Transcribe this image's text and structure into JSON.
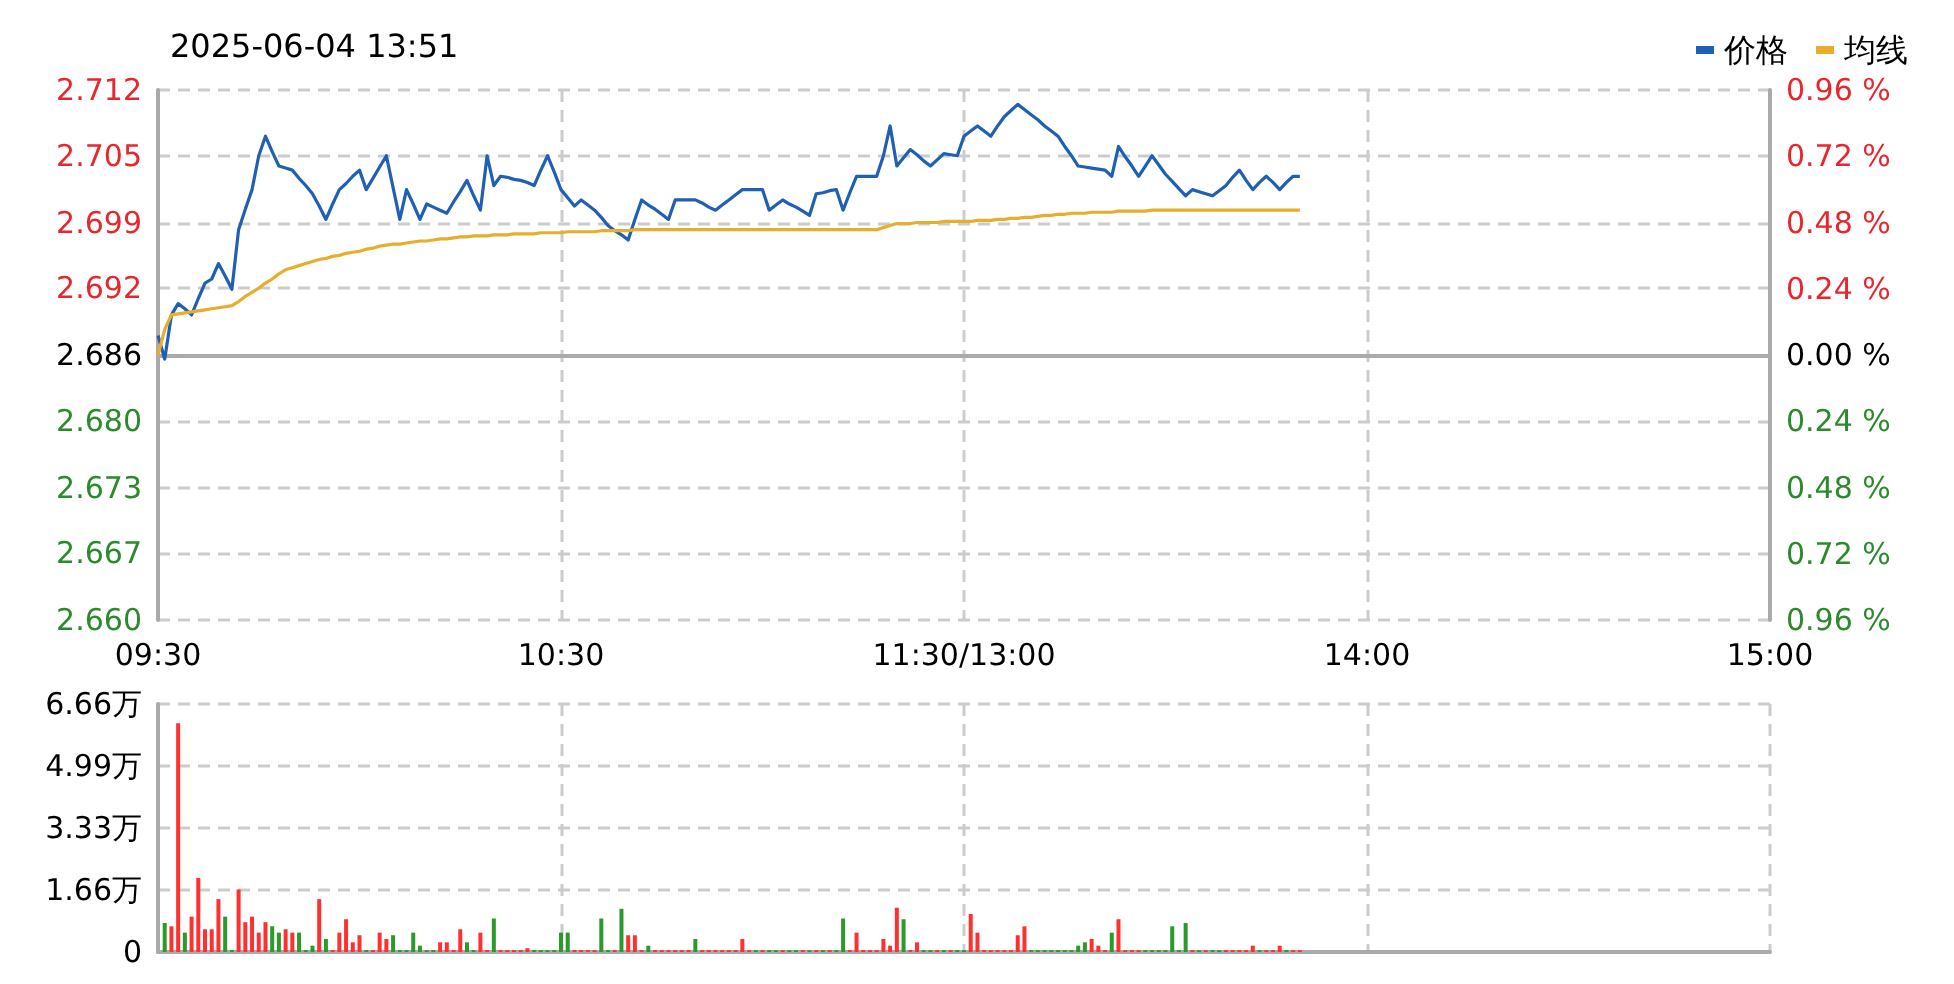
{
  "chart_data": [
    {
      "type": "line",
      "title": "2025-06-04 13:51",
      "legend": "top right",
      "grid": true,
      "categories": [
        "09:30",
        null,
        null,
        null,
        null,
        null,
        null,
        null,
        null,
        null,
        null,
        null,
        null,
        null,
        null,
        null,
        null,
        null,
        null,
        null,
        null,
        null,
        null,
        null,
        null,
        null,
        null,
        null,
        null,
        null,
        null,
        null,
        null,
        null,
        null,
        null,
        null,
        null,
        null,
        null,
        null,
        null,
        null,
        null,
        null,
        null,
        null,
        null,
        null,
        null,
        null,
        null,
        null,
        null,
        null,
        null,
        null,
        null,
        null,
        null,
        "10:30",
        null,
        null,
        null,
        null,
        null,
        null,
        null,
        null,
        null,
        null,
        null,
        null,
        null,
        null,
        null,
        null,
        null,
        null,
        null,
        null,
        null,
        null,
        null,
        null,
        null,
        null,
        null,
        null,
        null,
        null,
        null,
        null,
        null,
        null,
        null,
        null,
        null,
        null,
        null,
        null,
        null,
        null,
        null,
        null,
        null,
        null,
        null,
        null,
        null,
        null,
        null,
        null,
        null,
        null,
        null,
        null,
        null,
        null,
        null,
        "11:30/13:00",
        null,
        null,
        null,
        null,
        null,
        null,
        null,
        null,
        null,
        null,
        null,
        null,
        null,
        null,
        null,
        null,
        null,
        null,
        null,
        null,
        null,
        null,
        null,
        null,
        null,
        null,
        null,
        null,
        null,
        null,
        null,
        null,
        null,
        null,
        null,
        null,
        null,
        null,
        null,
        null,
        null,
        null,
        null,
        null,
        null,
        null,
        null,
        null,
        null,
        null,
        null,
        null,
        null,
        null,
        null,
        null,
        null,
        null,
        null,
        "14:00",
        null,
        null,
        null,
        null,
        null,
        null,
        null,
        null,
        null,
        null,
        null,
        null,
        null,
        null,
        null,
        null,
        null,
        null,
        null,
        null,
        null,
        null,
        null,
        null,
        null,
        null,
        null,
        null,
        null,
        null,
        null,
        null,
        null,
        null,
        null,
        null,
        null,
        null,
        null,
        null,
        null,
        null,
        null,
        null,
        null,
        null,
        null,
        null,
        null,
        null,
        null,
        null,
        null,
        null,
        null,
        null,
        null,
        null,
        null,
        "15:00"
      ],
      "ylim": [
        2.6602,
        2.7118
      ],
      "yticks": [
        {
          "value": 2.6602,
          "label": "2.660"
        },
        {
          "value": 2.6667,
          "label": "2.667"
        },
        {
          "value": 2.6731,
          "label": "2.673"
        },
        {
          "value": 2.6796,
          "label": "2.680"
        },
        {
          "value": 2.686,
          "label": "2.686"
        },
        {
          "value": 2.6925,
          "label": "2.692"
        },
        {
          "value": 2.6989,
          "label": "2.699"
        },
        {
          "value": 2.7054,
          "label": "2.705"
        },
        {
          "value": 2.7118,
          "label": "2.712"
        }
      ],
      "y2lim": [
        -0.96,
        0.96
      ],
      "y2ticks": [
        {
          "value": -0.96,
          "label": "0.96 %"
        },
        {
          "value": -0.72,
          "label": "0.72 %"
        },
        {
          "value": -0.48,
          "label": "0.48 %"
        },
        {
          "value": -0.24,
          "label": "0.24 %"
        },
        {
          "value": 0,
          "label": "0.00 %"
        },
        {
          "value": 0.24,
          "label": "0.24 %"
        },
        {
          "value": 0.48,
          "label": "0.48 %"
        },
        {
          "value": 0.72,
          "label": "0.72 %"
        },
        {
          "value": 0.96,
          "label": "0.96 %"
        }
      ],
      "series": [
        {
          "name": "价格",
          "color": "#1f5fb4",
          "values": [
            2.6879,
            2.6856,
            2.6899,
            2.691,
            2.6905,
            2.6899,
            2.6915,
            2.693,
            2.6934,
            2.6949,
            2.6937,
            2.6924,
            2.6982,
            2.7002,
            2.7021,
            2.7054,
            2.7073,
            2.7058,
            2.7044,
            2.7042,
            2.704,
            2.7032,
            2.7025,
            2.7017,
            2.7005,
            2.6992,
            2.7007,
            2.7021,
            2.7027,
            2.7034,
            2.704,
            2.7021,
            2.7032,
            2.7043,
            2.7054,
            2.7023,
            2.6992,
            2.7021,
            2.7007,
            2.6992,
            2.7007,
            2.7004,
            2.7001,
            2.6998,
            2.7009,
            2.7019,
            2.703,
            2.7015,
            2.7001,
            2.7054,
            2.7025,
            2.7034,
            2.7033,
            2.7031,
            2.703,
            2.7028,
            2.7025,
            2.704,
            2.7054,
            2.7038,
            2.7021,
            2.7013,
            2.7005,
            2.7011,
            2.7006,
            2.7001,
            2.6994,
            2.6986,
            2.6981,
            2.6977,
            2.6972,
            2.6992,
            2.7011,
            2.7006,
            2.7002,
            2.6997,
            2.6992,
            2.7011,
            2.7011,
            2.7011,
            2.7011,
            2.7008,
            2.7004,
            2.7001,
            2.7006,
            2.7011,
            2.7016,
            2.7021,
            2.7021,
            2.7021,
            2.7021,
            2.7001,
            2.7006,
            2.7011,
            2.7007,
            2.7004,
            2.7,
            2.6996,
            2.7017,
            2.7018,
            2.702,
            2.7021,
            2.7001,
            2.7018,
            2.7034,
            2.7034,
            2.7034,
            2.7034,
            2.7054,
            2.7083,
            2.7044,
            2.7052,
            2.706,
            2.7055,
            2.7049,
            2.7044,
            2.705,
            2.7056,
            2.7055,
            2.7054,
            2.7073,
            2.7078,
            2.7083,
            2.7078,
            2.7073,
            2.7083,
            2.7092,
            2.7098,
            2.7104,
            2.7099,
            2.7094,
            2.7089,
            2.7083,
            2.7078,
            2.7073,
            2.7063,
            2.7054,
            2.7044,
            2.7043,
            2.7042,
            2.7041,
            2.704,
            2.7034,
            2.7063,
            2.7053,
            2.7044,
            2.7034,
            2.7044,
            2.7054,
            2.7045,
            2.7036,
            2.7029,
            2.7022,
            2.7015,
            2.7021,
            2.7019,
            2.7017,
            2.7015,
            2.702,
            2.7025,
            2.7033,
            2.704,
            2.703,
            2.7021,
            2.7028,
            2.7034,
            2.7028,
            2.7021,
            2.7028,
            2.7034,
            2.7034,
            null,
            null,
            null,
            null,
            null,
            null,
            null,
            null,
            null,
            null,
            null,
            null,
            null,
            null,
            null,
            null,
            null,
            null,
            null,
            null,
            null,
            null,
            null,
            null,
            null,
            null,
            null,
            null,
            null,
            null,
            null,
            null,
            null,
            null,
            null,
            null,
            null,
            null,
            null,
            null,
            null,
            null,
            null,
            null,
            null,
            null,
            null,
            null,
            null,
            null,
            null,
            null,
            null,
            null,
            null,
            null,
            null,
            null,
            null,
            null,
            null,
            null,
            null,
            null,
            null,
            null,
            null,
            null,
            null,
            null
          ]
        },
        {
          "name": "均线",
          "color": "#e8ad2c",
          "values": [
            2.686,
            2.6885,
            2.6899,
            2.69,
            2.6901,
            2.6902,
            2.6903,
            2.6904,
            2.6905,
            2.6906,
            2.6907,
            2.6908,
            2.6912,
            2.6917,
            2.6921,
            2.6925,
            2.693,
            2.6934,
            2.6939,
            2.6943,
            2.6945,
            2.6947,
            2.6949,
            2.6951,
            2.6953,
            2.6954,
            2.6956,
            2.6957,
            2.6959,
            2.696,
            2.6961,
            2.6963,
            2.6964,
            2.6966,
            2.6967,
            2.6968,
            2.6968,
            2.6969,
            2.697,
            2.6971,
            2.6971,
            2.6972,
            2.6973,
            2.6973,
            2.6974,
            2.6975,
            2.6975,
            2.6976,
            2.6976,
            2.6976,
            2.6977,
            2.6977,
            2.6977,
            2.6978,
            2.6978,
            2.6978,
            2.6978,
            2.6979,
            2.6979,
            2.6979,
            2.6979,
            2.698,
            2.698,
            2.698,
            2.698,
            2.698,
            2.6981,
            2.6981,
            2.6981,
            2.6981,
            2.6981,
            2.6982,
            2.6982,
            2.6982,
            2.6982,
            2.6982,
            2.6982,
            2.6982,
            2.6982,
            2.6982,
            2.6982,
            2.6982,
            2.6982,
            2.6982,
            2.6982,
            2.6982,
            2.6982,
            2.6982,
            2.6982,
            2.6982,
            2.6982,
            2.6982,
            2.6982,
            2.6982,
            2.6982,
            2.6982,
            2.6982,
            2.6982,
            2.6982,
            2.6982,
            2.6982,
            2.6982,
            2.6982,
            2.6982,
            2.6982,
            2.6982,
            2.6982,
            2.6982,
            2.6984,
            2.6986,
            2.6988,
            2.6988,
            2.6988,
            2.6989,
            2.6989,
            2.6989,
            2.6989,
            2.699,
            2.699,
            2.699,
            2.699,
            2.699,
            2.6991,
            2.6991,
            2.6991,
            2.6992,
            2.6992,
            2.6993,
            2.6993,
            2.6994,
            2.6994,
            2.6995,
            2.6996,
            2.6996,
            2.6997,
            2.6997,
            2.6998,
            2.6998,
            2.6998,
            2.6999,
            2.6999,
            2.6999,
            2.6999,
            2.7,
            2.7,
            2.7,
            2.7,
            2.7,
            2.7001,
            2.7001,
            2.7001,
            2.7001,
            2.7001,
            2.7001,
            2.7001,
            2.7001,
            2.7001,
            2.7001,
            2.7001,
            2.7001,
            2.7001,
            2.7001,
            2.7001,
            2.7001,
            2.7001,
            2.7001,
            2.7001,
            2.7001,
            2.7001,
            2.7001,
            2.7001,
            null,
            null,
            null,
            null,
            null,
            null,
            null,
            null,
            null,
            null,
            null,
            null,
            null,
            null,
            null,
            null,
            null,
            null,
            null,
            null,
            null,
            null,
            null,
            null,
            null,
            null,
            null,
            null,
            null,
            null,
            null,
            null,
            null,
            null,
            null,
            null,
            null,
            null,
            null,
            null,
            null,
            null,
            null,
            null,
            null,
            null,
            null,
            null,
            null,
            null,
            null,
            null,
            null,
            null,
            null,
            null,
            null,
            null,
            null,
            null,
            null,
            null,
            null,
            null,
            null,
            null,
            null,
            null,
            null,
            null
          ]
        }
      ]
    },
    {
      "type": "bar",
      "grid": true,
      "tick_labels": "y",
      "categories": [
        null,
        null,
        null,
        null,
        null,
        null,
        null,
        null,
        null,
        null,
        null,
        null,
        null,
        null,
        null,
        null,
        null,
        null,
        null,
        null,
        null,
        null,
        null,
        null,
        null,
        null,
        null,
        null,
        null,
        null,
        null,
        null,
        null,
        null,
        null,
        null,
        null,
        null,
        null,
        null,
        null,
        null,
        null,
        null,
        null,
        null,
        null,
        null,
        null,
        null,
        null,
        null,
        null,
        null,
        null,
        null,
        null,
        null,
        null,
        null,
        null,
        null,
        null,
        null,
        null,
        null,
        null,
        null,
        null,
        null,
        null,
        null,
        null,
        null,
        null,
        null,
        null,
        null,
        null,
        null,
        null,
        null,
        null,
        null,
        null,
        null,
        null,
        null,
        null,
        null,
        null,
        null,
        null,
        null,
        null,
        null,
        null,
        null,
        null,
        null,
        null,
        null,
        null,
        null,
        null,
        null,
        null,
        null,
        null,
        null,
        null,
        null,
        null,
        null,
        null,
        null,
        null,
        null,
        null,
        null,
        null,
        null,
        null,
        null,
        null,
        null,
        null,
        null,
        null,
        null,
        null,
        null,
        null,
        null,
        null,
        null,
        null,
        null,
        null,
        null,
        null,
        null,
        null,
        null,
        null,
        null,
        null,
        null,
        null,
        null,
        null,
        null,
        null,
        null,
        null,
        null,
        null,
        null,
        null,
        null,
        null,
        null,
        null,
        null,
        null,
        null,
        null,
        null,
        null,
        null,
        null,
        null,
        null,
        null,
        null,
        null,
        null,
        null,
        null,
        null,
        null,
        null,
        null,
        null,
        null,
        null,
        null,
        null,
        null,
        null,
        null,
        null,
        null,
        null,
        null,
        null,
        null,
        null,
        null,
        null,
        null,
        null,
        null,
        null,
        null,
        null,
        null,
        null,
        null,
        null,
        null,
        null,
        null,
        null,
        null,
        null,
        null,
        null,
        null,
        null,
        null,
        null,
        null,
        null,
        null,
        null,
        null,
        null,
        null,
        null,
        null,
        null,
        null,
        null,
        null,
        null,
        null,
        null,
        null,
        null,
        null
      ],
      "ylim": [
        0,
        6.66
      ],
      "yticks": [
        0,
        {
          "value": 1.66,
          "label": "1.66万"
        },
        {
          "value": 3.33,
          "label": "3.33万"
        },
        {
          "value": 4.99,
          "label": "4.99万"
        },
        {
          "value": 6.66,
          "label": "6.66万"
        }
      ],
      "values": [
        null,
        0.78,
        0.69,
        6.14,
        0.52,
        0.95,
        1.99,
        0.61,
        0.61,
        1.42,
        0.95,
        0.05,
        1.68,
        0.8,
        0.95,
        0.52,
        0.8,
        0.69,
        0.52,
        0.61,
        0.52,
        0.52,
        0.05,
        0.17,
        1.42,
        0.35,
        0.05,
        0.52,
        0.88,
        0.26,
        0.45,
        0.05,
        0.05,
        0.52,
        0.35,
        0.45,
        0.05,
        0.05,
        0.52,
        0.17,
        0.05,
        0.05,
        0.26,
        0.26,
        0.05,
        0.61,
        0.26,
        0.05,
        0.52,
        0.05,
        0.9,
        0.05,
        0.05,
        0.05,
        0.05,
        0.1,
        0.05,
        0.05,
        0.05,
        0.05,
        0.52,
        0.52,
        0.05,
        0.05,
        0.05,
        0.05,
        0.9,
        0.05,
        0.05,
        1.16,
        0.45,
        0.45,
        0.05,
        0.17,
        0.05,
        0.05,
        0.05,
        0.05,
        0.05,
        0.05,
        0.35,
        0.05,
        0.05,
        0.05,
        0.05,
        0.05,
        0.05,
        0.35,
        0.05,
        0.05,
        0.05,
        0.05,
        0.05,
        0.05,
        0.05,
        0.05,
        0.05,
        0.05,
        0.05,
        0.05,
        0.05,
        0.05,
        0.9,
        0.05,
        0.52,
        0.05,
        0.05,
        0.05,
        0.35,
        0.17,
        1.19,
        0.88,
        0.05,
        0.26,
        0.05,
        0.05,
        0.05,
        0.05,
        0.05,
        0.05,
        0.05,
        1.02,
        0.52,
        0.05,
        0.05,
        0.05,
        0.05,
        0.05,
        0.45,
        0.69,
        0.05,
        0.05,
        0.05,
        0.05,
        0.05,
        0.05,
        0.05,
        0.17,
        0.26,
        0.35,
        0.17,
        0.05,
        0.52,
        0.88,
        0.05,
        0.05,
        0.05,
        0.05,
        0.05,
        0.05,
        0.05,
        0.69,
        0.05,
        0.78,
        0.05,
        0.05,
        0.05,
        0.05,
        0.05,
        0.05,
        0.05,
        0.05,
        0.05,
        0.17,
        0.05,
        0.05,
        0.05,
        0.17,
        0.05,
        0.05,
        0.05,
        null,
        null,
        null,
        null,
        null,
        null,
        null,
        null,
        null,
        null,
        null,
        null,
        null,
        null,
        null,
        null,
        null,
        null,
        null,
        null,
        null,
        null,
        null,
        null,
        null,
        null,
        null,
        null,
        null,
        null,
        null,
        null,
        null,
        null,
        null,
        null,
        null,
        null,
        null,
        null,
        null,
        null,
        null,
        null,
        null,
        null,
        null,
        null,
        null,
        null,
        null,
        null,
        null,
        null,
        null,
        null,
        null,
        null,
        null,
        null,
        null,
        null,
        null,
        null,
        null,
        null,
        null,
        null,
        null,
        null
      ],
      "colors": [
        null,
        "#2a9a2a",
        "#ff3030",
        "#ff3030",
        "#2a9a2a",
        "#ff3030",
        "#ff3030",
        "#ff3030",
        "#ff3030",
        "#ff3030",
        "#2a9a2a",
        "#2a9a2a",
        "#ff3030",
        "#ff3030",
        "#ff3030",
        "#ff3030",
        "#ff3030",
        "#2a9a2a",
        "#2a9a2a",
        "#ff3030",
        "#ff3030",
        "#2a9a2a",
        "#2a9a2a",
        "#2a9a2a",
        "#ff3030",
        "#2a9a2a",
        "#ff3030",
        "#ff3030",
        "#ff3030",
        "#ff3030",
        "#ff3030",
        "#2a9a2a",
        "#ff3030",
        "#ff3030",
        "#ff3030",
        "#2a9a2a",
        "#2a9a2a",
        "#2a9a2a",
        "#2a9a2a",
        "#2a9a2a",
        "#2a9a2a",
        "#2a9a2a",
        "#ff3030",
        "#ff3030",
        "#ff3030",
        "#ff3030",
        "#2a9a2a",
        "#2a9a2a",
        "#ff3030",
        "#ff3030",
        "#2a9a2a",
        "#ff3030",
        "#ff3030",
        "#ff3030",
        "#ff3030",
        "#ff3030",
        "#2a9a2a",
        "#2a9a2a",
        "#2a9a2a",
        "#2a9a2a",
        "#2a9a2a",
        "#2a9a2a",
        "#ff3030",
        "#ff3030",
        "#ff3030",
        "#ff3030",
        "#2a9a2a",
        "#2a9a2a",
        "#ff3030",
        "#2a9a2a",
        "#ff3030",
        "#ff3030",
        "#ff3030",
        "#2a9a2a",
        "#ff3030",
        "#ff3030",
        "#ff3030",
        "#ff3030",
        "#ff3030",
        "#ff3030",
        "#2a9a2a",
        "#ff3030",
        "#ff3030",
        "#ff3030",
        "#ff3030",
        "#ff3030",
        "#ff3030",
        "#ff3030",
        "#ff3030",
        "#2a9a2a",
        "#ff3030",
        "#2a9a2a",
        "#2a9a2a",
        "#ff3030",
        "#2a9a2a",
        "#2a9a2a",
        "#ff3030",
        "#2a9a2a",
        "#ff3030",
        "#2a9a2a",
        "#ff3030",
        "#2a9a2a",
        "#2a9a2a",
        "#ff3030",
        "#ff3030",
        "#ff3030",
        "#ff3030",
        "#ff3030",
        "#ff3030",
        "#ff3030",
        "#ff3030",
        "#2a9a2a",
        "#ff3030",
        "#ff3030",
        "#2a9a2a",
        "#2a9a2a",
        "#ff3030",
        "#2a9a2a",
        "#ff3030",
        "#2a9a2a",
        "#2a9a2a",
        "#ff3030",
        "#ff3030",
        "#ff3030",
        "#ff3030",
        "#ff3030",
        "#ff3030",
        "#ff3030",
        "#ff3030",
        "#ff3030",
        "#2a9a2a",
        "#2a9a2a",
        "#2a9a2a",
        "#2a9a2a",
        "#2a9a2a",
        "#2a9a2a",
        "#2a9a2a",
        "#2a9a2a",
        "#2a9a2a",
        "#ff3030",
        "#ff3030",
        "#ff3030",
        "#2a9a2a",
        "#ff3030",
        "#ff3030",
        "#ff3030",
        "#ff3030",
        "#2a9a2a",
        "#2a9a2a",
        "#2a9a2a",
        "#2a9a2a",
        "#2a9a2a",
        "#2a9a2a",
        "#2a9a2a",
        "#ff3030",
        "#2a9a2a",
        "#ff3030",
        "#2a9a2a",
        "#2a9a2a",
        "#ff3030",
        "#ff3030",
        "#ff3030",
        "#ff3030",
        "#ff3030",
        "#2a9a2a",
        "#ff3030",
        "#ff3030",
        "#ff3030",
        "#2a9a2a",
        "#ff3030",
        "#ff3030",
        null,
        null,
        null,
        null,
        null,
        null,
        null,
        null,
        null,
        null,
        null,
        null,
        null,
        null,
        null,
        null,
        null,
        null,
        null,
        null,
        null,
        null,
        null,
        null,
        null,
        null,
        null,
        null,
        null,
        null,
        null,
        null,
        null,
        null,
        null,
        null,
        null,
        null,
        null,
        null,
        null,
        null,
        null,
        null,
        null,
        null,
        null,
        null,
        null,
        null,
        null,
        null,
        null,
        null,
        null,
        null,
        null,
        null,
        null,
        null,
        null,
        null,
        null,
        null,
        null,
        null,
        null,
        null,
        null,
        null
      ]
    }
  ]
}
